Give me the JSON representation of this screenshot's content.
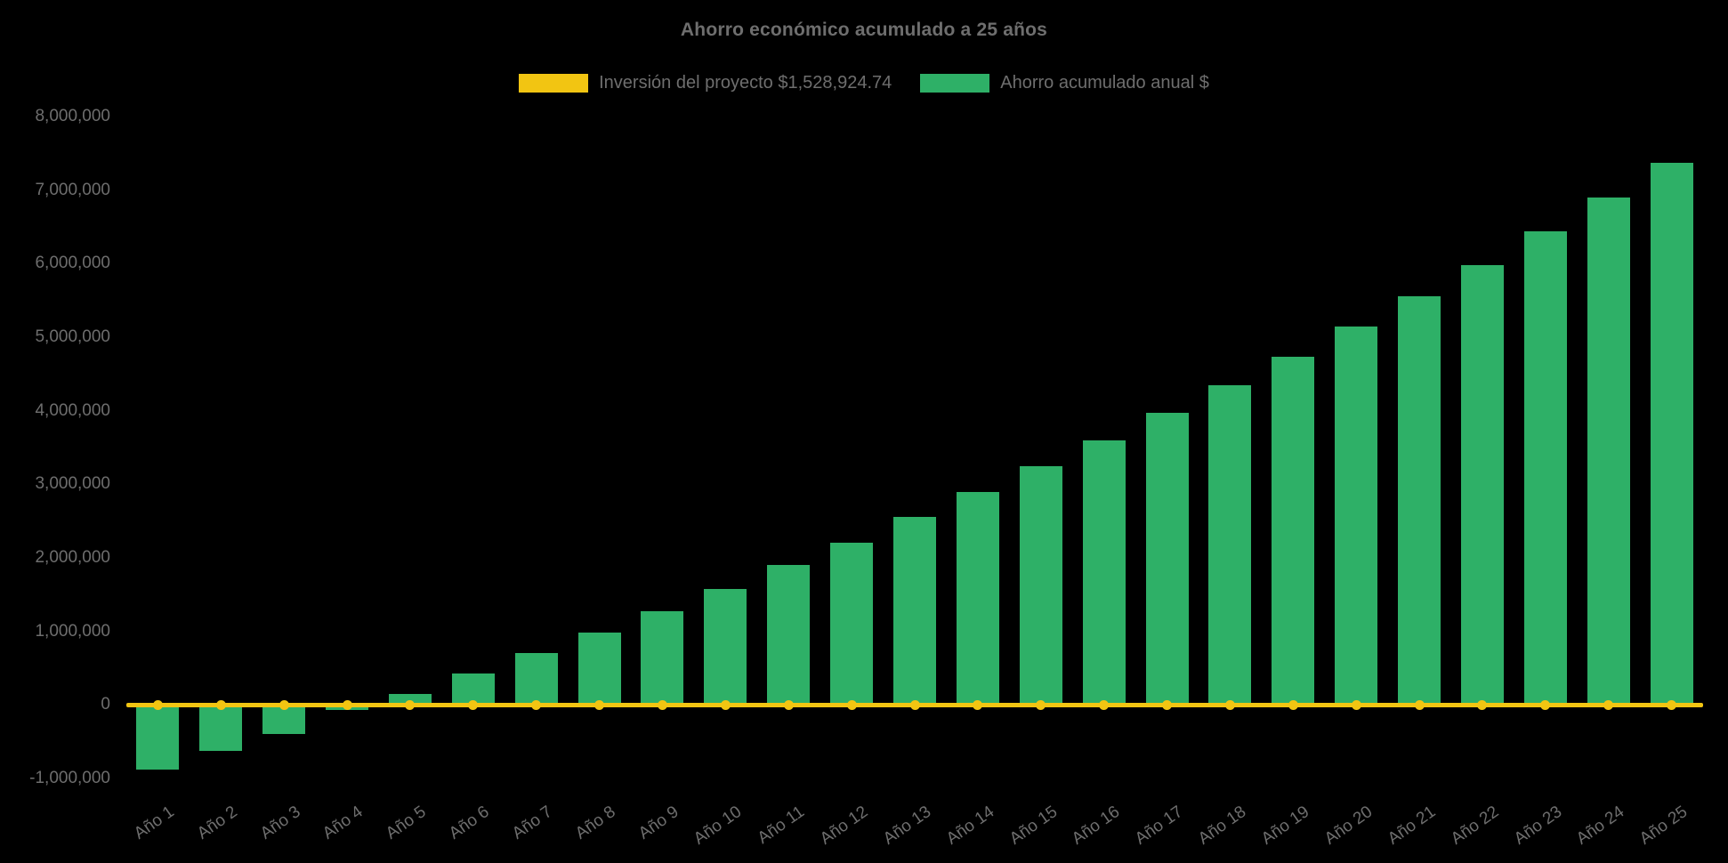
{
  "title": "Ahorro económico acumulado a 25 años",
  "legend": [
    {
      "label": "Inversión del proyecto $1,528,924.74",
      "color": "#f2c512"
    },
    {
      "label": "Ahorro acumulado anual $",
      "color": "#2eb067"
    }
  ],
  "chart_data": {
    "type": "bar",
    "title": "Ahorro económico acumulado a 25 años",
    "categories": [
      "Año 1",
      "Año 2",
      "Año 3",
      "Año 4",
      "Año 5",
      "Año 6",
      "Año 7",
      "Año 8",
      "Año 9",
      "Año 10",
      "Año 11",
      "Año 12",
      "Año 13",
      "Año 14",
      "Año 15",
      "Año 16",
      "Año 17",
      "Año 18",
      "Año 19",
      "Año 20",
      "Año 21",
      "Año 22",
      "Año 23",
      "Año 24",
      "Año 25"
    ],
    "series": [
      {
        "name": "Inversión del proyecto $1,528,924.74",
        "type": "line",
        "color": "#f2c512",
        "values": [
          0,
          0,
          0,
          0,
          0,
          0,
          0,
          0,
          0,
          0,
          0,
          0,
          0,
          0,
          0,
          0,
          0,
          0,
          0,
          0,
          0,
          0,
          0,
          0,
          0
        ]
      },
      {
        "name": "Ahorro acumulado anual $",
        "type": "bar",
        "color": "#2eb067",
        "values": [
          -880000,
          -620000,
          -390000,
          -70000,
          150000,
          430000,
          700000,
          980000,
          1280000,
          1580000,
          1900000,
          2210000,
          2560000,
          2900000,
          3250000,
          3600000,
          3970000,
          4350000,
          4730000,
          5150000,
          5560000,
          5980000,
          6440000,
          6900000,
          7370000
        ]
      }
    ],
    "ylim": [
      -1000000,
      8000000
    ],
    "ytick_step": 1000000,
    "yticks": [
      "8,000,000",
      "7,000,000",
      "6,000,000",
      "5,000,000",
      "4,000,000",
      "3,000,000",
      "2,000,000",
      "1,000,000",
      "0",
      "-1,000,000"
    ],
    "xlabel": "",
    "ylabel": "",
    "grid": false,
    "legend_position": "top",
    "background": "#000000"
  }
}
